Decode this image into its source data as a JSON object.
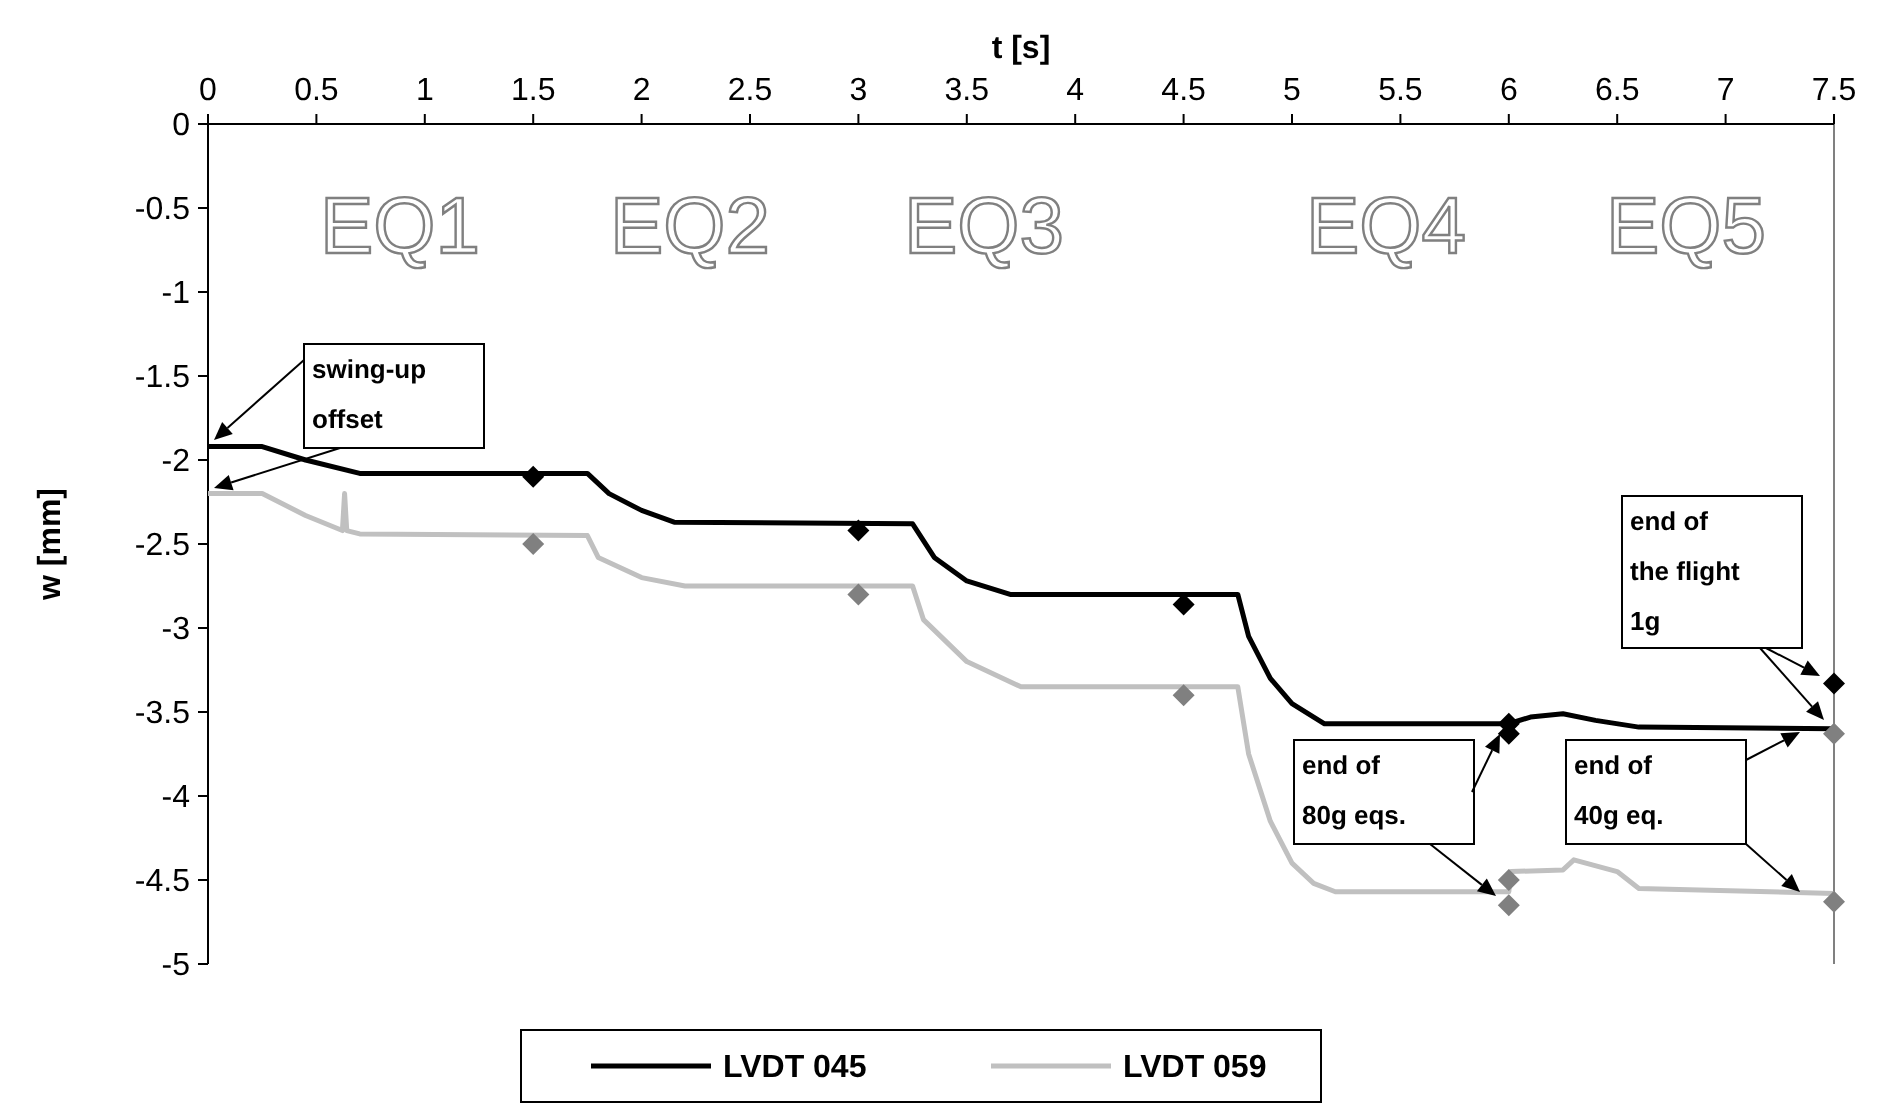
{
  "chart_data": {
    "type": "line",
    "xlabel": "t [s]",
    "ylabel": "w [mm]",
    "xlim": [
      0,
      7.5
    ],
    "xticks": [
      0,
      0.5,
      1,
      1.5,
      2,
      2.5,
      3,
      3.5,
      4,
      4.5,
      5,
      5.5,
      6,
      6.5,
      7,
      7.5
    ],
    "ylim": [
      -5,
      0
    ],
    "yticks": [
      0,
      -0.5,
      -1,
      -1.5,
      -2,
      -2.5,
      -3,
      -3.5,
      -4,
      -4.5,
      -5
    ],
    "grid": false,
    "legend": "bottom",
    "ref_lines": [
      {
        "axis": "x",
        "value": 7.5,
        "color": "#808080"
      }
    ],
    "series": [
      {
        "name": "LVDT 045",
        "color": "#000000",
        "x": [
          0,
          0.25,
          0.45,
          0.7,
          1.75,
          1.85,
          2.0,
          2.15,
          3.25,
          3.35,
          3.5,
          3.7,
          4.75,
          4.8,
          4.9,
          5.0,
          5.15,
          6.0,
          6.1,
          6.25,
          6.4,
          6.6,
          7.5
        ],
        "values": [
          -1.92,
          -1.92,
          -2.0,
          -2.08,
          -2.08,
          -2.2,
          -2.3,
          -2.37,
          -2.38,
          -2.58,
          -2.72,
          -2.8,
          -2.8,
          -3.05,
          -3.3,
          -3.45,
          -3.57,
          -3.57,
          -3.53,
          -3.51,
          -3.55,
          -3.59,
          -3.6
        ]
      },
      {
        "name": "LVDT 059",
        "color": "#c0c0c0",
        "x": [
          0,
          0.25,
          0.45,
          0.62,
          0.63,
          0.64,
          0.7,
          1.75,
          1.8,
          2.0,
          2.2,
          3.25,
          3.3,
          3.5,
          3.75,
          4.75,
          4.8,
          4.9,
          5.0,
          5.1,
          5.2,
          6.0,
          6.01,
          6.25,
          6.3,
          6.5,
          6.6,
          7.5
        ],
        "values": [
          -2.2,
          -2.2,
          -2.33,
          -2.42,
          -2.2,
          -2.42,
          -2.44,
          -2.45,
          -2.58,
          -2.7,
          -2.75,
          -2.75,
          -2.95,
          -3.2,
          -3.35,
          -3.35,
          -3.75,
          -4.15,
          -4.4,
          -4.52,
          -4.57,
          -4.57,
          -4.45,
          -4.44,
          -4.38,
          -4.45,
          -4.55,
          -4.58
        ]
      },
      {
        "type": "scatter",
        "marker": "diamond",
        "color": "#000000",
        "x": [
          1.5,
          3,
          4.5,
          6,
          6,
          7.5
        ],
        "values": [
          -2.1,
          -2.42,
          -2.86,
          -3.57,
          -3.63,
          -3.33
        ]
      },
      {
        "type": "scatter",
        "marker": "diamond",
        "color": "#808080",
        "x": [
          1.5,
          3,
          4.5,
          6,
          6,
          7.5,
          7.5
        ],
        "values": [
          -2.5,
          -2.8,
          -3.4,
          -4.5,
          -4.65,
          -3.63,
          -4.63
        ]
      }
    ],
    "annotations": [
      "EQ1",
      "EQ2",
      "EQ3",
      "EQ4",
      "EQ5",
      "swing-up\noffset",
      "end of\nthe flight\n1g",
      "end of\n80g eqs.",
      "end of\n40g eq."
    ]
  }
}
